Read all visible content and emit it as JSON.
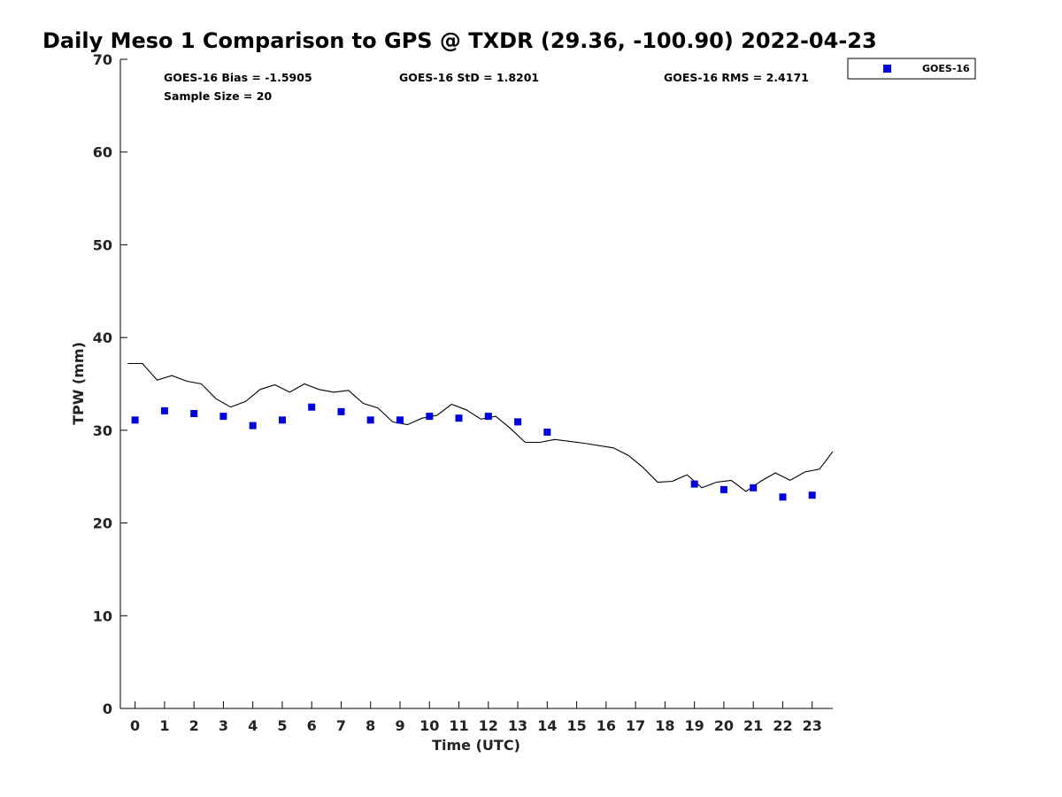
{
  "chart_data": {
    "type": "scatter",
    "title": "Daily Meso 1 Comparison to GPS @ TXDR (29.36, -100.90) 2022-04-23",
    "xlabel": "Time (UTC)",
    "ylabel": "TPW (mm)",
    "xlim": [
      -0.5,
      23.7
    ],
    "ylim": [
      0,
      70
    ],
    "x_ticks": [
      0,
      1,
      2,
      3,
      4,
      5,
      6,
      7,
      8,
      9,
      10,
      11,
      12,
      13,
      14,
      15,
      16,
      17,
      18,
      19,
      20,
      21,
      22,
      23
    ],
    "x_tick_labels": [
      "0",
      "1",
      "2",
      "3",
      "4",
      "5",
      "6",
      "7",
      "8",
      "9",
      "10",
      "11",
      "12",
      "13",
      "14",
      "15",
      "16",
      "17",
      "18",
      "19",
      "20",
      "21",
      "22",
      "23"
    ],
    "y_ticks": [
      0,
      10,
      20,
      30,
      40,
      50,
      60,
      70
    ],
    "y_tick_labels": [
      "0",
      "10",
      "20",
      "30",
      "40",
      "50",
      "60",
      "70"
    ],
    "grid": false,
    "legend_position": "top-right, outside plot",
    "stats": {
      "bias": "GOES-16 Bias = -1.5905",
      "std": "GOES-16 StD = 1.8201",
      "rms": "GOES-16 RMS = 2.4171",
      "sample": "Sample Size = 20"
    },
    "series": [
      {
        "name": "GOES-16",
        "marker": "square",
        "color": "#0000dd",
        "x": [
          0,
          1,
          2,
          3,
          4,
          5,
          6,
          7,
          8,
          9,
          10,
          11,
          12,
          13,
          14,
          19,
          20,
          21,
          22,
          23
        ],
        "y": [
          31.1,
          32.1,
          31.8,
          31.5,
          30.5,
          31.1,
          32.5,
          32.0,
          31.1,
          31.1,
          31.5,
          31.3,
          31.5,
          30.9,
          29.8,
          24.2,
          23.6,
          23.8,
          22.8,
          23.0
        ]
      },
      {
        "name": "",
        "marker": "line",
        "color": "#000000",
        "x": [
          -0.25,
          0.25,
          0.75,
          1.25,
          1.75,
          2.25,
          2.75,
          3.25,
          3.75,
          4.25,
          4.75,
          5.25,
          5.75,
          6.25,
          6.75,
          7.25,
          7.75,
          8.25,
          8.75,
          9.25,
          9.75,
          10.25,
          10.75,
          11.25,
          11.75,
          12.25,
          12.75,
          13.25,
          13.75,
          14.25,
          15.25,
          16.25,
          16.75,
          17.25,
          17.75,
          18.25,
          18.75,
          19.25,
          19.75,
          20.25,
          20.75,
          21.25,
          21.75,
          22.25,
          22.75,
          23.25,
          23.7
        ],
        "y": [
          37.2,
          37.2,
          35.4,
          35.9,
          35.3,
          35.0,
          33.4,
          32.5,
          33.1,
          34.4,
          34.9,
          34.1,
          35.0,
          34.4,
          34.1,
          34.3,
          32.9,
          32.4,
          30.9,
          30.6,
          31.3,
          31.6,
          32.8,
          32.2,
          31.2,
          31.5,
          30.2,
          28.7,
          28.7,
          29.0,
          28.6,
          28.1,
          27.3,
          26.0,
          24.4,
          24.5,
          25.2,
          23.8,
          24.4,
          24.6,
          23.4,
          24.5,
          25.4,
          24.6,
          25.5,
          25.8,
          27.7
        ]
      }
    ]
  }
}
